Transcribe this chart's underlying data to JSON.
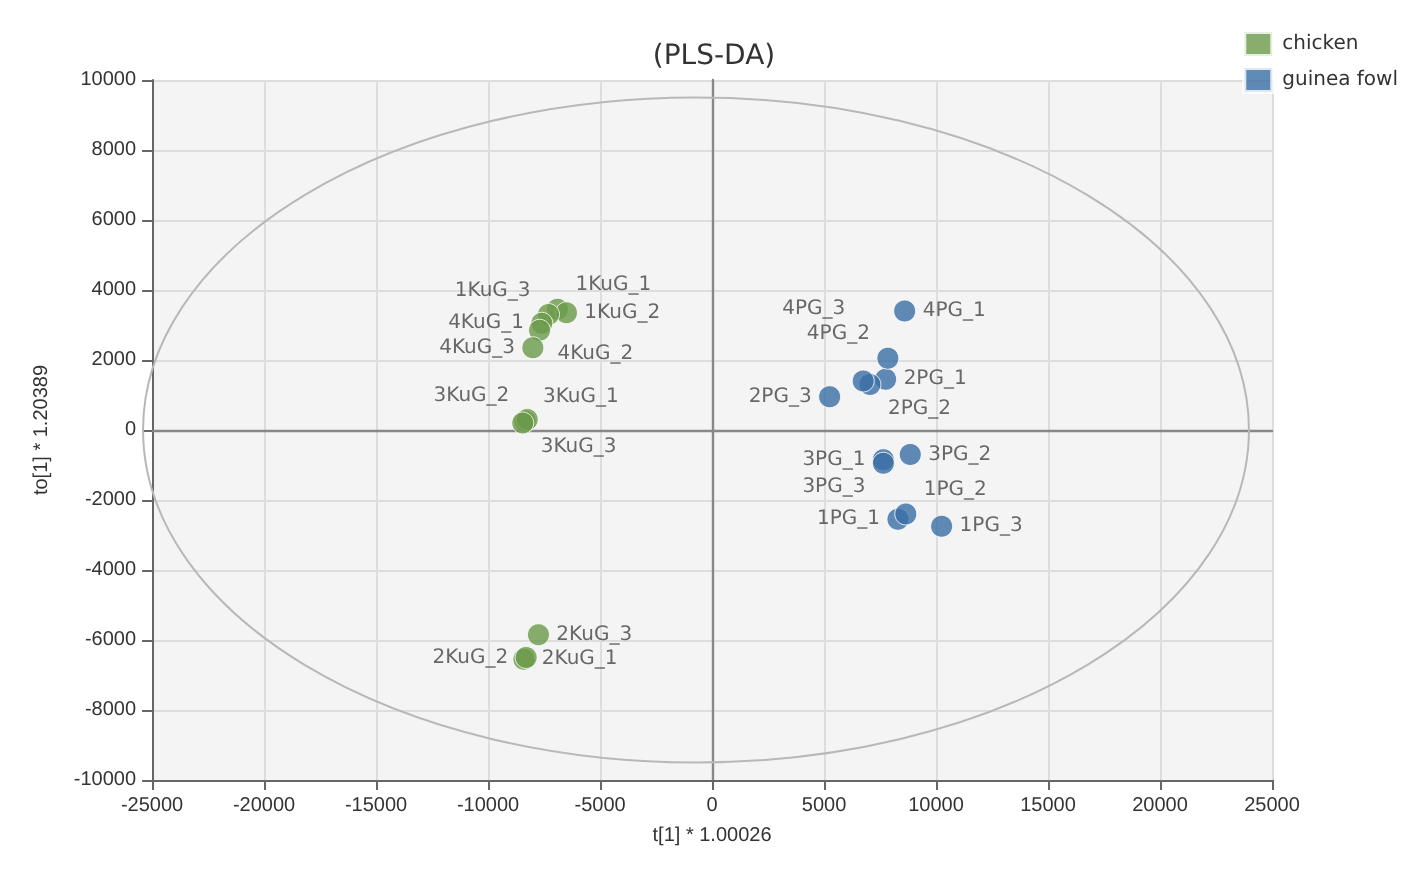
{
  "chart_data": {
    "type": "scatter",
    "title": "(PLS-DA)",
    "xlabel": "t[1] * 1.00026",
    "ylabel": "to[1] * 1.20389",
    "xlim": [
      -25000,
      25000
    ],
    "ylim": [
      -10000,
      10000
    ],
    "xticks": [
      -25000,
      -20000,
      -15000,
      -10000,
      -5000,
      0,
      5000,
      10000,
      15000,
      20000,
      25000
    ],
    "yticks": [
      -10000,
      -8000,
      -6000,
      -4000,
      -2000,
      0,
      2000,
      4000,
      6000,
      8000,
      10000
    ],
    "grid": true,
    "legend": "top right",
    "marker": "circle",
    "series": [
      {
        "name": "chicken",
        "color": "#6a9a48",
        "x": [
          -6900,
          -6500,
          -7300,
          -7600,
          -7700,
          -8000,
          -8350,
          -8250,
          -8450,
          -8400,
          -8300,
          -7750
        ],
        "values": [
          3450,
          3350,
          3300,
          3050,
          2850,
          2350,
          250,
          300,
          200,
          -6550,
          -6500,
          -5850
        ],
        "value_labels": [
          "1KuG_1",
          "1KuG_2",
          "1KuG_3",
          "4KuG_1",
          "4KuG_2",
          "4KuG_3",
          "3KuG_1",
          "3KuG_2",
          "3KuG_3",
          "2KuG_1",
          "2KuG_2",
          "2KuG_3"
        ]
      },
      {
        "name": "guinea fowl",
        "color": "#3a6ea5",
        "x": [
          8300,
          8650,
          10250,
          7750,
          7050,
          5250,
          7650,
          8850,
          7650,
          8600,
          7850,
          6750
        ],
        "values": [
          -2550,
          -2400,
          -2750,
          1450,
          1300,
          950,
          -850,
          -700,
          -950,
          3400,
          2050,
          1400
        ],
        "value_labels": [
          "1PG_1",
          "1PG_2",
          "1PG_3",
          "2PG_1",
          "2PG_2",
          "2PG_3",
          "3PG_1",
          "3PG_2",
          "3PG_3",
          "4PG_1",
          "4PG_2",
          "4PG_3"
        ]
      }
    ]
  }
}
